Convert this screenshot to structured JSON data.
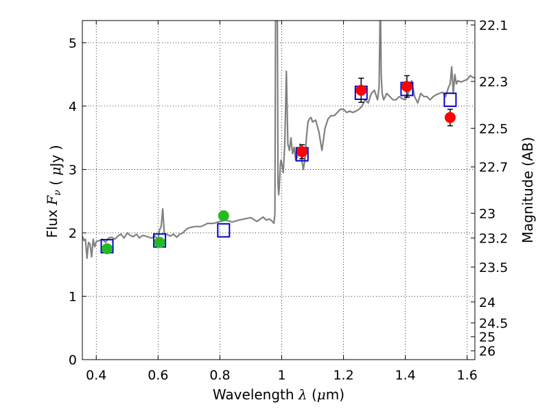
{
  "chart_data": {
    "type": "scatter",
    "xlabel": "Wavelength  λ (μm)",
    "ylabel": "Flux  F_ν  ( μJy )",
    "ylabel_right": "Magnitude (AB)",
    "xlim": [
      0.355,
      1.625
    ],
    "ylim": [
      0,
      5.35
    ],
    "grid": true,
    "x_ticks": [
      0.4,
      0.6,
      0.8,
      1.0,
      1.2,
      1.4,
      1.6
    ],
    "x_tick_labels": [
      "0.4",
      "0.6",
      "0.8",
      "1",
      "1.2",
      "1.4",
      "1.6"
    ],
    "y_ticks": [
      0,
      1,
      2,
      3,
      4,
      5
    ],
    "y_tick_labels": [
      "0",
      "1",
      "2",
      "3",
      "4",
      "5"
    ],
    "right_ticks": [
      {
        "label": "22.1",
        "flux": 5.28
      },
      {
        "label": "22.3",
        "flux": 4.39
      },
      {
        "label": "22.5",
        "flux": 3.65
      },
      {
        "label": "22.7",
        "flux": 3.04
      },
      {
        "label": "23",
        "flux": 2.31
      },
      {
        "label": "23.2",
        "flux": 1.92
      },
      {
        "label": "23.5",
        "flux": 1.46
      },
      {
        "label": "24",
        "flux": 0.91
      },
      {
        "label": "24.5",
        "flux": 0.58
      },
      {
        "label": "25",
        "flux": 0.36
      },
      {
        "label": "26",
        "flux": 0.14
      }
    ],
    "series": [
      {
        "kind": "line",
        "color": "#808080",
        "x": [
          0.355,
          0.36,
          0.365,
          0.37,
          0.375,
          0.38,
          0.385,
          0.39,
          0.395,
          0.4,
          0.41,
          0.42,
          0.43,
          0.44,
          0.45,
          0.46,
          0.47,
          0.48,
          0.49,
          0.5,
          0.51,
          0.52,
          0.53,
          0.54,
          0.55,
          0.56,
          0.57,
          0.58,
          0.59,
          0.6,
          0.605,
          0.61,
          0.615,
          0.62,
          0.63,
          0.64,
          0.65,
          0.66,
          0.67,
          0.68,
          0.69,
          0.7,
          0.72,
          0.74,
          0.76,
          0.78,
          0.8,
          0.82,
          0.84,
          0.86,
          0.88,
          0.9,
          0.92,
          0.94,
          0.95,
          0.96,
          0.97,
          0.975,
          0.978,
          0.98,
          0.982,
          0.984,
          0.986,
          0.988,
          0.99,
          0.992,
          0.994,
          0.996,
          0.998,
          1.0,
          1.005,
          1.01,
          1.015,
          1.02,
          1.025,
          1.03,
          1.035,
          1.04,
          1.045,
          1.05,
          1.055,
          1.06,
          1.065,
          1.07,
          1.075,
          1.08,
          1.085,
          1.09,
          1.095,
          1.1,
          1.11,
          1.12,
          1.13,
          1.14,
          1.15,
          1.16,
          1.17,
          1.18,
          1.19,
          1.2,
          1.21,
          1.22,
          1.23,
          1.24,
          1.25,
          1.26,
          1.27,
          1.28,
          1.29,
          1.3,
          1.31,
          1.315,
          1.318,
          1.32,
          1.322,
          1.325,
          1.33,
          1.34,
          1.35,
          1.36,
          1.37,
          1.38,
          1.39,
          1.4,
          1.41,
          1.42,
          1.43,
          1.44,
          1.45,
          1.46,
          1.47,
          1.48,
          1.49,
          1.5,
          1.51,
          1.52,
          1.53,
          1.54,
          1.545,
          1.55,
          1.555,
          1.56,
          1.565,
          1.57,
          1.58,
          1.59,
          1.6,
          1.61,
          1.62,
          1.625
        ],
        "y": [
          1.95,
          1.88,
          1.9,
          1.6,
          1.85,
          1.82,
          1.62,
          1.9,
          1.78,
          1.86,
          1.88,
          1.9,
          1.85,
          1.92,
          1.93,
          1.9,
          1.95,
          1.98,
          1.92,
          2.0,
          1.96,
          1.94,
          1.98,
          1.92,
          1.96,
          1.95,
          1.93,
          1.92,
          1.95,
          1.9,
          2.05,
          2.1,
          2.38,
          2.0,
          1.97,
          1.95,
          1.98,
          1.93,
          1.98,
          2.0,
          2.05,
          2.08,
          2.1,
          2.1,
          2.15,
          2.15,
          2.18,
          2.2,
          2.17,
          2.2,
          2.22,
          2.24,
          2.18,
          2.25,
          2.2,
          2.22,
          2.18,
          2.15,
          2.3,
          5.35,
          5.35,
          5.35,
          5.35,
          2.8,
          2.6,
          2.7,
          2.9,
          3.1,
          3.15,
          3.1,
          2.95,
          3.4,
          4.55,
          3.4,
          3.3,
          3.5,
          3.25,
          3.35,
          3.15,
          3.2,
          3.25,
          3.4,
          3.15,
          3.0,
          3.15,
          3.5,
          3.75,
          3.8,
          3.82,
          3.75,
          3.78,
          3.6,
          3.3,
          3.65,
          3.8,
          3.85,
          3.85,
          3.9,
          3.95,
          3.95,
          3.9,
          3.92,
          3.9,
          3.92,
          3.95,
          4.0,
          4.1,
          4.05,
          4.2,
          4.25,
          4.1,
          4.3,
          5.35,
          5.35,
          4.5,
          4.2,
          4.1,
          4.2,
          4.15,
          4.1,
          4.1,
          4.15,
          4.12,
          4.1,
          4.2,
          4.4,
          4.15,
          4.05,
          4.2,
          4.15,
          4.15,
          4.1,
          4.15,
          4.18,
          4.2,
          4.22,
          4.15,
          4.3,
          4.35,
          4.62,
          4.2,
          4.5,
          4.35,
          4.4,
          4.38,
          4.4,
          4.42,
          4.48,
          4.45,
          4.45
        ]
      },
      {
        "kind": "open-square",
        "color": "#0000cc",
        "x": [
          0.435,
          0.605,
          0.812,
          1.066,
          1.257,
          1.405,
          1.545
        ],
        "y": [
          1.79,
          1.88,
          2.04,
          3.24,
          4.21,
          4.27,
          4.1
        ]
      },
      {
        "kind": "point-errorbar",
        "color": "#22bb22",
        "x": [
          0.435,
          0.605,
          0.812
        ],
        "y": [
          1.75,
          1.85,
          2.27
        ],
        "yerr": [
          0.06,
          0.06,
          0.07
        ]
      },
      {
        "kind": "point-errorbar",
        "color": "#ff0000",
        "x": [
          1.066,
          1.257,
          1.405,
          1.545
        ],
        "y": [
          3.28,
          4.25,
          4.31,
          3.82
        ],
        "yerr": [
          0.11,
          0.19,
          0.17,
          0.13
        ]
      }
    ]
  }
}
